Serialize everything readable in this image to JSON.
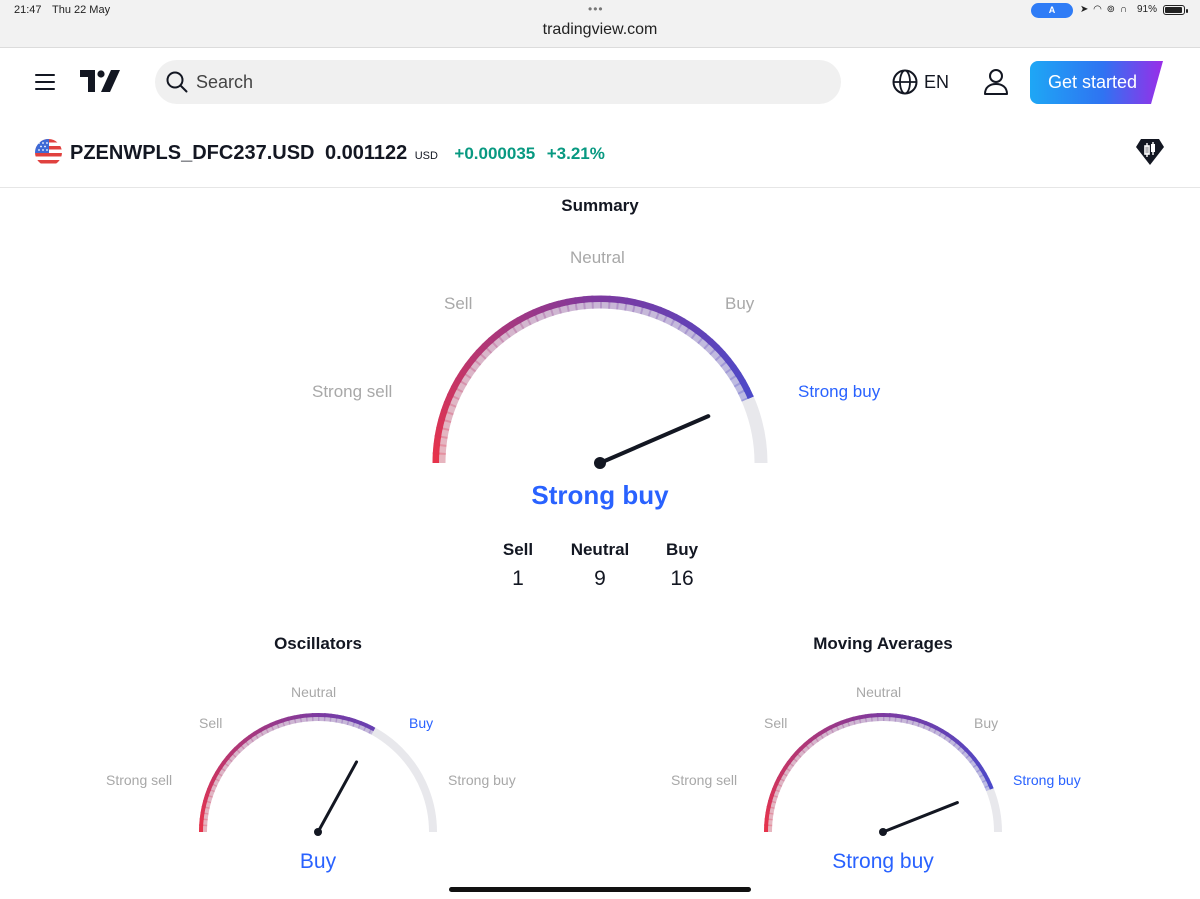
{
  "status_bar": {
    "time": "21:47",
    "date": "Thu 22 May",
    "url": "tradingview.com",
    "battery": "91%"
  },
  "header": {
    "search_placeholder": "Search",
    "language": "EN",
    "cta_label": "Get started"
  },
  "symbol": {
    "name": "PZENWPLS_DFC237.USD",
    "price": "0.001122",
    "currency": "USD",
    "change": "+0.000035",
    "change_percent": "+3.21%",
    "change_color": "#089981"
  },
  "summary": {
    "title": "Summary",
    "labels": {
      "strong_sell": "Strong sell",
      "sell": "Sell",
      "neutral": "Neutral",
      "buy": "Buy",
      "strong_buy": "Strong buy"
    },
    "result": "Strong buy",
    "needle_value": 0.87,
    "counts": [
      {
        "label": "Sell",
        "value": "1"
      },
      {
        "label": "Neutral",
        "value": "9"
      },
      {
        "label": "Buy",
        "value": "16"
      }
    ]
  },
  "oscillators": {
    "title": "Oscillators",
    "labels": {
      "strong_sell": "Strong sell",
      "sell": "Sell",
      "neutral": "Neutral",
      "buy": "Buy",
      "strong_buy": "Strong buy"
    },
    "result": "Buy",
    "needle_value": 0.66
  },
  "moving_averages": {
    "title": "Moving Averages",
    "labels": {
      "strong_sell": "Strong sell",
      "sell": "Sell",
      "neutral": "Neutral",
      "buy": "Buy",
      "strong_buy": "Strong buy"
    },
    "result": "Strong buy",
    "needle_value": 0.88
  },
  "colors": {
    "accent": "#2962ff",
    "label_gray": "#a8a8a8",
    "gauge_start": "#e8334a",
    "gauge_mid": "#7c3aa0",
    "gauge_end": "#3b4fd8"
  }
}
